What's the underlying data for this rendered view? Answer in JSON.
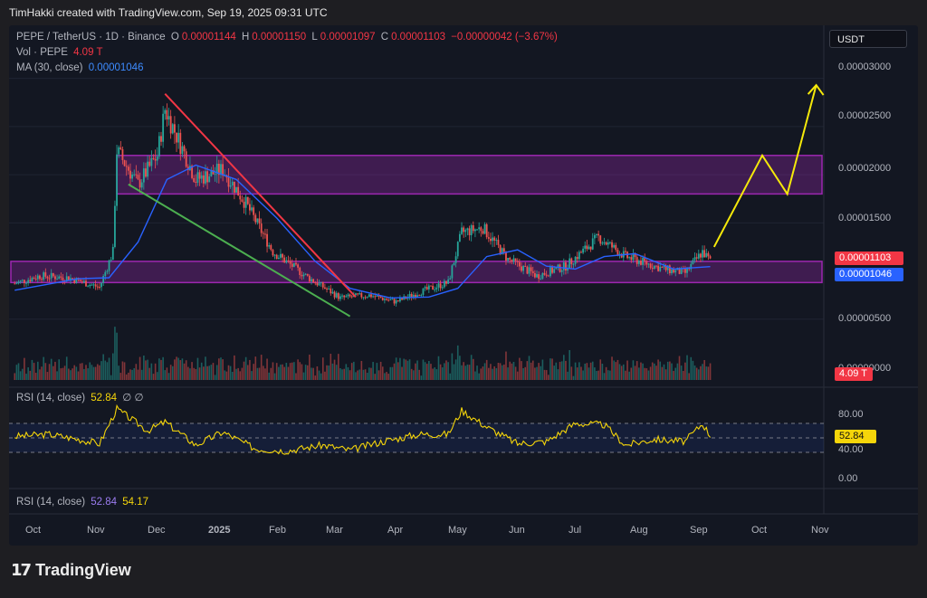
{
  "header": {
    "credit": "TimHakki created with TradingView.com, Sep 19, 2025 09:31 UTC"
  },
  "legend": {
    "symbol": "PEPE / TetherUS · 1D · Binance",
    "o_label": "O",
    "o_value": "0.00001144",
    "h_label": "H",
    "h_value": "0.00001150",
    "l_label": "L",
    "l_value": "0.00001097",
    "c_label": "C",
    "c_value": "0.00001103",
    "change": "−0.00000042 (−3.67%)",
    "vol_label": "Vol · PEPE",
    "vol_value": "4.09 T",
    "ma_label": "MA (30, close)",
    "ma_value": "0.00001046"
  },
  "currency_button": "USDT",
  "price_axis": {
    "ticks": [
      "0.00003000",
      "0.00002500",
      "0.00002000",
      "0.00001500",
      "0.00000500",
      "0.00000000"
    ],
    "last_price": "0.00001103",
    "ma_price": "0.00001046",
    "vol_tag": "4.09 T"
  },
  "rsi_pane": {
    "legend_label": "RSI (14, close)",
    "legend_value": "52.84",
    "legend_extra": "∅  ∅",
    "ticks": [
      "80.00",
      "40.00"
    ],
    "value_tag": "52.84"
  },
  "rsi_pane2": {
    "legend_label": "RSI (14, close)",
    "value1": "52.84",
    "value2": "54.17",
    "tick": "0.00"
  },
  "time_axis": {
    "labels": [
      "Oct",
      "Nov",
      "Dec",
      "2025",
      "Feb",
      "Mar",
      "Apr",
      "May",
      "Jun",
      "Jul",
      "Aug",
      "Sep",
      "Oct",
      "Nov"
    ]
  },
  "branding": {
    "logo_text": "TradingView"
  },
  "colors": {
    "up": "#26a69a",
    "down": "#ef5350",
    "ma": "#2962ff",
    "zone": "#9c27b0",
    "trend_red": "#f23645",
    "trend_green": "#4caf50",
    "projection": "#f5e90a",
    "rsi": "#f5d50a"
  },
  "chart_data": {
    "type": "candlestick",
    "title": "PEPE / TetherUS · 1D · Binance",
    "x_range": [
      "2024-09-20",
      "2025-11-15"
    ],
    "price_ylim": [
      0,
      3.1e-05
    ],
    "ohlc_last": {
      "open": 1.144e-05,
      "high": 1.15e-05,
      "low": 1.097e-05,
      "close": 1.103e-05
    },
    "close_path": [
      [
        "2024-09-22",
        8.7e-06
      ],
      [
        "2024-10-05",
        9.5e-06
      ],
      [
        "2024-10-20",
        9.3e-06
      ],
      [
        "2024-11-05",
        8.3e-06
      ],
      [
        "2024-11-12",
        1.2e-05
      ],
      [
        "2024-11-14",
        2.25e-05
      ],
      [
        "2024-11-25",
        1.9e-05
      ],
      [
        "2024-12-05",
        2.2e-05
      ],
      [
        "2024-12-09",
        2.68e-05
      ],
      [
        "2024-12-25",
        1.95e-05
      ],
      [
        "2025-01-08",
        2.05e-05
      ],
      [
        "2025-01-20",
        1.7e-05
      ],
      [
        "2025-02-03",
        1.2e-05
      ],
      [
        "2025-02-20",
        9.5e-06
      ],
      [
        "2025-03-10",
        7.2e-06
      ],
      [
        "2025-03-25",
        7.5e-06
      ],
      [
        "2025-04-08",
        6.8e-06
      ],
      [
        "2025-04-20",
        7.8e-06
      ],
      [
        "2025-05-05",
        8.8e-06
      ],
      [
        "2025-05-12",
        1.4e-05
      ],
      [
        "2025-05-23",
        1.45e-05
      ],
      [
        "2025-06-05",
        1.12e-05
      ],
      [
        "2025-06-20",
        9.5e-06
      ],
      [
        "2025-07-05",
        1.05e-05
      ],
      [
        "2025-07-22",
        1.35e-05
      ],
      [
        "2025-08-05",
        1.15e-05
      ],
      [
        "2025-08-25",
        1.02e-05
      ],
      [
        "2025-09-05",
        9.8e-06
      ],
      [
        "2025-09-14",
        1.2e-05
      ],
      [
        "2025-09-18",
        1.103e-05
      ]
    ],
    "ma30_path": [
      [
        "2024-09-22",
        8e-06
      ],
      [
        "2024-10-25",
        9.2e-06
      ],
      [
        "2024-11-10",
        9.3e-06
      ],
      [
        "2024-11-25",
        1.3e-05
      ],
      [
        "2024-12-10",
        1.95e-05
      ],
      [
        "2024-12-25",
        2.1e-05
      ],
      [
        "2025-01-15",
        1.95e-05
      ],
      [
        "2025-02-05",
        1.55e-05
      ],
      [
        "2025-02-25",
        1.1e-05
      ],
      [
        "2025-03-15",
        8.2e-06
      ],
      [
        "2025-04-05",
        7.2e-06
      ],
      [
        "2025-04-25",
        7.3e-06
      ],
      [
        "2025-05-10",
        8.2e-06
      ],
      [
        "2025-05-25",
        1.15e-05
      ],
      [
        "2025-06-10",
        1.22e-05
      ],
      [
        "2025-06-25",
        1.05e-05
      ],
      [
        "2025-07-10",
        1.02e-05
      ],
      [
        "2025-07-25",
        1.15e-05
      ],
      [
        "2025-08-10",
        1.18e-05
      ],
      [
        "2025-08-30",
        1.02e-05
      ],
      [
        "2025-09-18",
        1.046e-05
      ]
    ],
    "zones": [
      {
        "from": "2024-11-14",
        "to": "2025-11-15",
        "low": 1.8e-05,
        "high": 2.2e-05
      },
      {
        "from": "2024-09-20",
        "to": "2025-11-15",
        "low": 8.8e-06,
        "high": 1.1e-05
      }
    ],
    "trendlines": [
      {
        "color": "red",
        "points": [
          [
            "2024-12-09",
            2.84e-05
          ],
          [
            "2025-03-18",
            7.3e-06
          ]
        ]
      },
      {
        "color": "green",
        "points": [
          [
            "2024-11-20",
            1.9e-05
          ],
          [
            "2025-03-15",
            5.3e-06
          ]
        ]
      }
    ],
    "projection": [
      [
        "2025-09-20",
        1.25e-05
      ],
      [
        "2025-10-15",
        2.2e-05
      ],
      [
        "2025-10-28",
        1.8e-05
      ],
      [
        "2025-11-12",
        2.93e-05
      ]
    ],
    "volume": {
      "last": "4.09 T"
    },
    "rsi": {
      "levels": [
        30,
        50,
        70
      ],
      "ylim": [
        0,
        100
      ],
      "series": [
        [
          "2024-09-22",
          52
        ],
        [
          "2024-10-10",
          55
        ],
        [
          "2024-10-25",
          48
        ],
        [
          "2024-11-05",
          42
        ],
        [
          "2024-11-14",
          90
        ],
        [
          "2024-11-30",
          60
        ],
        [
          "2024-12-09",
          72
        ],
        [
          "2024-12-25",
          40
        ],
        [
          "2025-01-08",
          58
        ],
        [
          "2025-01-25",
          35
        ],
        [
          "2025-02-10",
          32
        ],
        [
          "2025-03-01",
          40
        ],
        [
          "2025-03-15",
          33
        ],
        [
          "2025-04-01",
          45
        ],
        [
          "2025-04-20",
          55
        ],
        [
          "2025-05-05",
          55
        ],
        [
          "2025-05-12",
          88
        ],
        [
          "2025-05-25",
          65
        ],
        [
          "2025-06-10",
          42
        ],
        [
          "2025-06-25",
          45
        ],
        [
          "2025-07-10",
          70
        ],
        [
          "2025-07-25",
          68
        ],
        [
          "2025-08-05",
          40
        ],
        [
          "2025-08-20",
          48
        ],
        [
          "2025-09-05",
          45
        ],
        [
          "2025-09-14",
          70
        ],
        [
          "2025-09-18",
          52.84
        ]
      ]
    }
  }
}
